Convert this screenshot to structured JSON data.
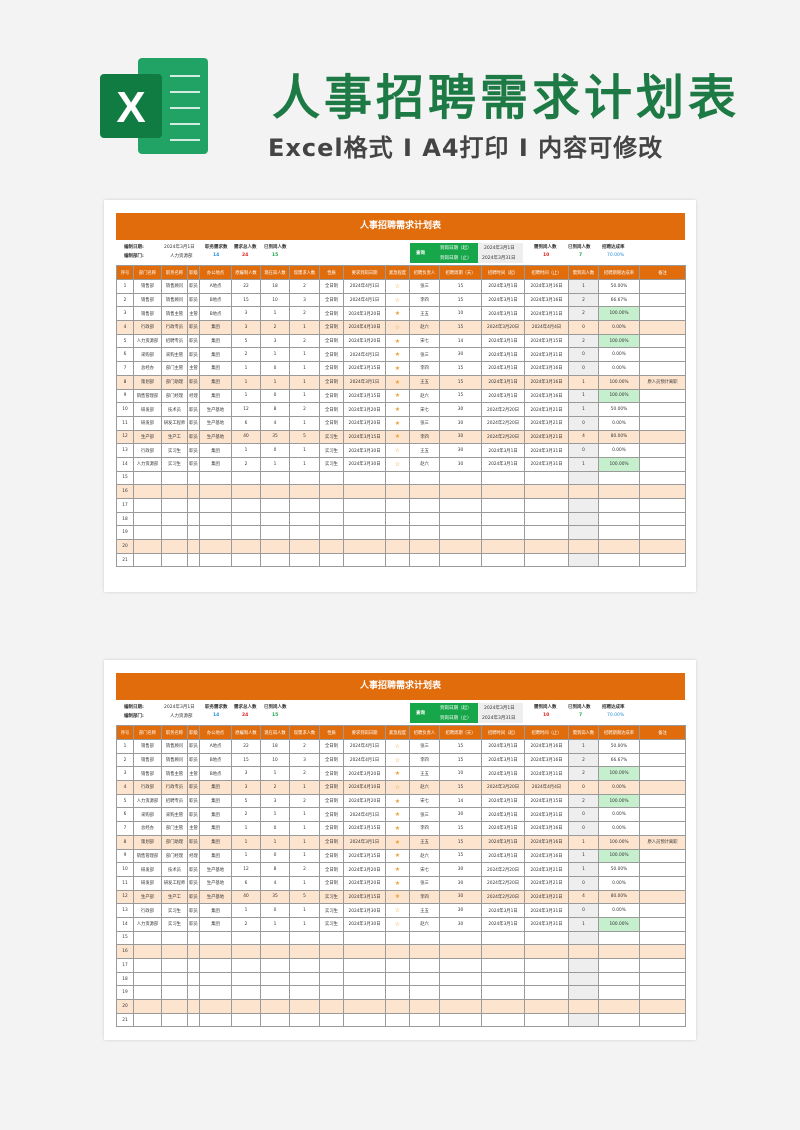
{
  "hero": {
    "title": "人事招聘需求计划表",
    "subtitle": "Excel格式 I A4打印 I 内容可修改",
    "logo_letter": "X",
    "accent": "#1d7a45"
  },
  "sheet": {
    "title": "人事招聘需求计划表",
    "info": {
      "date_label": "编制日期:",
      "date": "2024年3月1日",
      "dept_label": "编制部门:",
      "dept": "人力资源部",
      "jobs_label": "职务需求数",
      "jobs": "14",
      "need_label": "需求总人数",
      "need": "24",
      "arrived_label": "已到岗人数",
      "arrived": "15",
      "query_label": "查询",
      "from_label": "到岗日期（起）",
      "from": "2024年3月1日",
      "to_label": "到岗日期（止）",
      "to": "2024年3月31日",
      "due_label": "需到岗人数",
      "due": "10",
      "got_label": "已到岗人数",
      "got": "7",
      "rate_label": "招聘达成率",
      "rate": "70.00%"
    },
    "columns": [
      "序号",
      "部门名称",
      "职务名称",
      "职级",
      "办公地点",
      "原编制人数",
      "现在岗人数",
      "现需求人数",
      "性质",
      "要求到岗日期",
      "紧急程度",
      "招聘负责人",
      "招聘周期（天）",
      "招聘时间（起）",
      "招聘时间（止）",
      "需到岗人数",
      "招聘期限达成率",
      "备注"
    ],
    "rows": [
      [
        "1",
        "销售部",
        "销售顾问",
        "职员",
        "A地点",
        "22",
        "18",
        "2",
        "全日制",
        "2024年4月1日",
        "☆",
        "张三",
        "15",
        "2024年3月1日",
        "2024年3月16日",
        "1",
        "50.00%",
        ""
      ],
      [
        "2",
        "销售部",
        "销售顾问",
        "职员",
        "B地点",
        "15",
        "10",
        "3",
        "全日制",
        "2024年4月1日",
        "☆",
        "李四",
        "15",
        "2024年3月1日",
        "2024年3月16日",
        "2",
        "66.67%",
        ""
      ],
      [
        "3",
        "销售部",
        "销售主管",
        "主管",
        "B地点",
        "3",
        "1",
        "2",
        "全日制",
        "2024年3月20日",
        "★",
        "王五",
        "10",
        "2024年3月1日",
        "2024年3月11日",
        "2",
        "100.00%",
        ""
      ],
      [
        "4",
        "行政部",
        "行政专员",
        "职员",
        "集团",
        "3",
        "2",
        "1",
        "全日制",
        "2024年4月10日",
        "☆",
        "赵六",
        "15",
        "2024年3月20日",
        "2024年4月4日",
        "0",
        "0.00%",
        ""
      ],
      [
        "5",
        "人力资源部",
        "招聘专员",
        "职员",
        "集团",
        "5",
        "3",
        "2",
        "全日制",
        "2024年3月20日",
        "★",
        "宋七",
        "14",
        "2024年3月1日",
        "2024年3月15日",
        "2",
        "100.00%",
        ""
      ],
      [
        "6",
        "采购部",
        "采购主管",
        "职员",
        "集团",
        "2",
        "1",
        "1",
        "全日制",
        "2024年4月1日",
        "★",
        "张三",
        "30",
        "2024年3月1日",
        "2024年3月31日",
        "0",
        "0.00%",
        ""
      ],
      [
        "7",
        "总经办",
        "部门主管",
        "主管",
        "集团",
        "1",
        "0",
        "1",
        "全日制",
        "2024年3月15日",
        "★",
        "李四",
        "15",
        "2024年3月1日",
        "2024年3月16日",
        "0",
        "0.00%",
        ""
      ],
      [
        "8",
        "策划部",
        "部门助理",
        "职员",
        "集团",
        "1",
        "1",
        "1",
        "全日制",
        "2024年3月1日",
        "★",
        "王五",
        "15",
        "2024年3月1日",
        "2024年3月16日",
        "1",
        "100.00%",
        "原人员预计离职"
      ],
      [
        "9",
        "销售管理部",
        "部门经理",
        "经理",
        "集团",
        "1",
        "0",
        "1",
        "全日制",
        "2024年3月15日",
        "★",
        "赵六",
        "15",
        "2024年3月1日",
        "2024年3月16日",
        "1",
        "100.00%",
        ""
      ],
      [
        "10",
        "研发部",
        "技术员",
        "职员",
        "生产基地",
        "12",
        "8",
        "2",
        "全日制",
        "2024年3月20日",
        "★",
        "宋七",
        "30",
        "2024年2月20日",
        "2024年3月21日",
        "1",
        "50.00%",
        ""
      ],
      [
        "11",
        "研发部",
        "研发工程师",
        "职员",
        "生产基地",
        "6",
        "4",
        "1",
        "全日制",
        "2024年3月20日",
        "★",
        "张三",
        "30",
        "2024年2月20日",
        "2024年3月21日",
        "0",
        "0.00%",
        ""
      ],
      [
        "12",
        "生产部",
        "生产工",
        "职员",
        "生产基地",
        "40",
        "35",
        "5",
        "实习生",
        "2024年3月15日",
        "★",
        "李四",
        "30",
        "2024年2月20日",
        "2024年3月21日",
        "4",
        "80.00%",
        ""
      ],
      [
        "13",
        "行政部",
        "实习生",
        "职员",
        "集团",
        "1",
        "0",
        "1",
        "实习生",
        "2024年3月30日",
        "☆",
        "王五",
        "30",
        "2024年3月1日",
        "2024年3月31日",
        "0",
        "0.00%",
        ""
      ],
      [
        "14",
        "人力资源部",
        "实习生",
        "职员",
        "集团",
        "2",
        "1",
        "1",
        "实习生",
        "2024年3月30日",
        "☆",
        "赵六",
        "30",
        "2024年3月1日",
        "2024年3月31日",
        "1",
        "100.00%",
        ""
      ],
      [
        "15",
        "",
        "",
        "",
        "",
        "",
        "",
        "",
        "",
        "",
        "",
        "",
        "",
        "",
        "",
        "",
        "",
        ""
      ],
      [
        "16",
        "",
        "",
        "",
        "",
        "",
        "",
        "",
        "",
        "",
        "",
        "",
        "",
        "",
        "",
        "",
        "",
        ""
      ],
      [
        "17",
        "",
        "",
        "",
        "",
        "",
        "",
        "",
        "",
        "",
        "",
        "",
        "",
        "",
        "",
        "",
        "",
        ""
      ],
      [
        "18",
        "",
        "",
        "",
        "",
        "",
        "",
        "",
        "",
        "",
        "",
        "",
        "",
        "",
        "",
        "",
        "",
        ""
      ],
      [
        "19",
        "",
        "",
        "",
        "",
        "",
        "",
        "",
        "",
        "",
        "",
        "",
        "",
        "",
        "",
        "",
        "",
        ""
      ],
      [
        "20",
        "",
        "",
        "",
        "",
        "",
        "",
        "",
        "",
        "",
        "",
        "",
        "",
        "",
        "",
        "",
        "",
        ""
      ],
      [
        "21",
        "",
        "",
        "",
        "",
        "",
        "",
        "",
        "",
        "",
        "",
        "",
        "",
        "",
        "",
        "",
        "",
        ""
      ]
    ],
    "colors": {
      "header": "#e06c0c",
      "highlight_row": "#fde4cf",
      "ok_cell": "#c6efce",
      "query": "#18a64a"
    }
  }
}
